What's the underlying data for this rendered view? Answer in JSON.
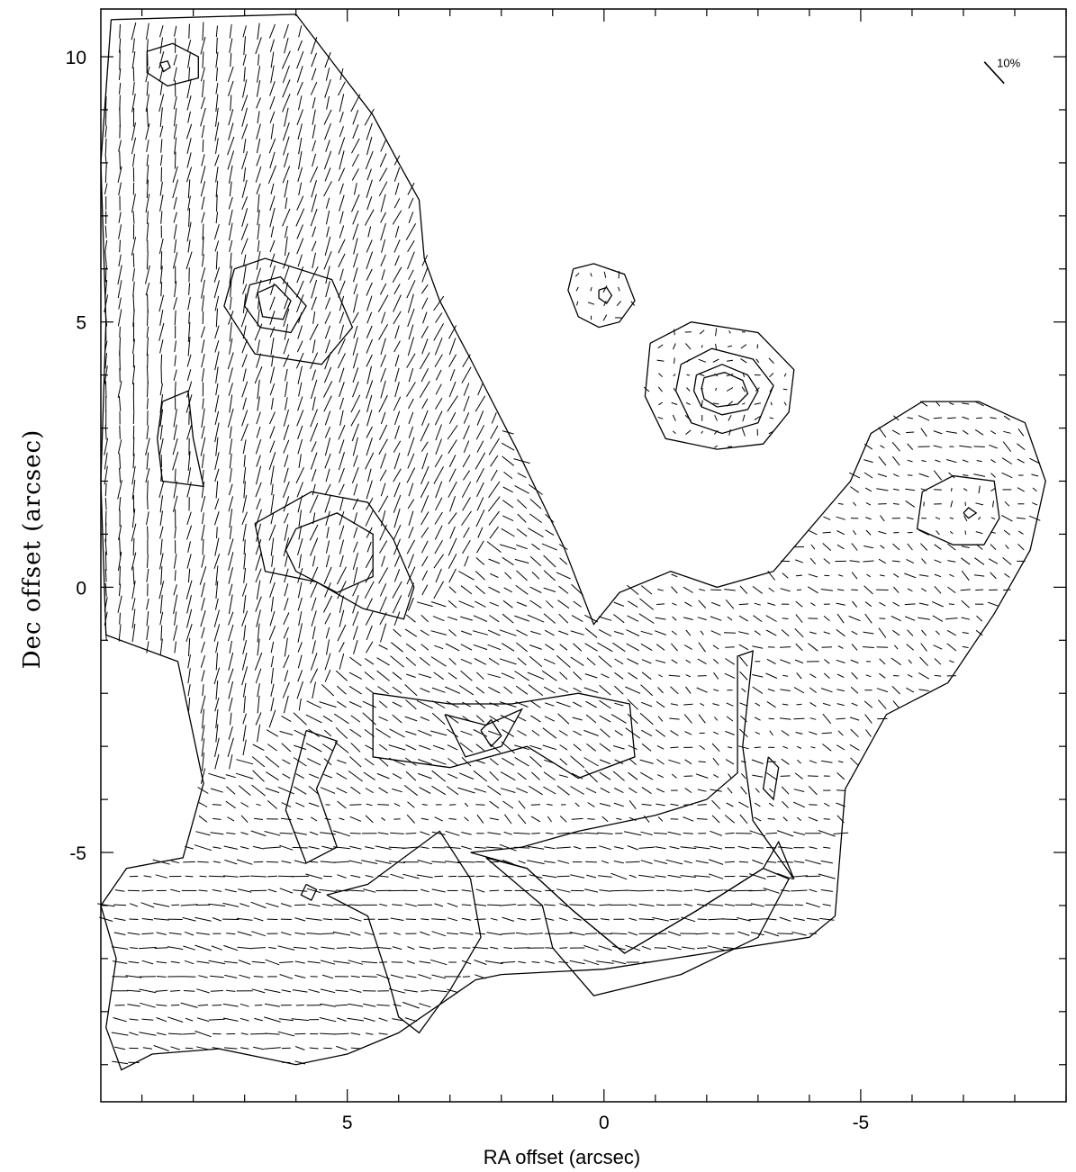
{
  "chart_data": {
    "type": "scatter",
    "description_kind": "polarization-vector-map-with-contours",
    "xlabel": "RA offset (arcsec)",
    "ylabel": "Dec offset (arcsec)",
    "xlim": [
      9.8,
      -9.0
    ],
    "ylim": [
      -9.7,
      10.9
    ],
    "x_ticks": [
      5,
      0,
      -5
    ],
    "x_tick_labels": [
      "5",
      "0",
      "-5"
    ],
    "y_ticks": [
      10,
      5,
      0,
      -5
    ],
    "y_tick_labels": [
      "10",
      "5",
      "0",
      "-5"
    ],
    "vector_scale": {
      "label": "10%",
      "length_percent": 10,
      "x": -7.6,
      "y": 9.7
    },
    "vector_grid_step": 0.27,
    "contours": [
      {
        "name": "emission-outline",
        "points": [
          [
            9.6,
            10.7
          ],
          [
            6.0,
            10.8
          ],
          [
            4.5,
            8.9
          ],
          [
            4.0,
            8.0
          ],
          [
            3.6,
            7.3
          ],
          [
            3.5,
            6.2
          ],
          [
            3.2,
            5.4
          ],
          [
            2.6,
            4.3
          ],
          [
            1.7,
            2.6
          ],
          [
            0.8,
            0.8
          ],
          [
            0.2,
            -0.7
          ],
          [
            -0.3,
            -0.1
          ],
          [
            -1.3,
            0.3
          ],
          [
            -2.2,
            0.0
          ],
          [
            -3.3,
            0.3
          ],
          [
            -4.8,
            2.0
          ],
          [
            -5.2,
            2.9
          ],
          [
            -6.2,
            3.5
          ],
          [
            -7.3,
            3.5
          ],
          [
            -8.2,
            3.1
          ],
          [
            -8.6,
            2.0
          ],
          [
            -8.3,
            0.7
          ],
          [
            -7.6,
            -0.5
          ],
          [
            -6.7,
            -1.8
          ],
          [
            -5.5,
            -2.4
          ],
          [
            -4.7,
            -3.8
          ],
          [
            -4.6,
            -5.0
          ],
          [
            -4.5,
            -6.2
          ],
          [
            -4.0,
            -6.6
          ],
          [
            -2.0,
            -6.9
          ],
          [
            0.0,
            -7.2
          ],
          [
            2.0,
            -7.3
          ],
          [
            2.5,
            -7.4
          ],
          [
            4.0,
            -8.4
          ],
          [
            5.0,
            -8.8
          ],
          [
            6.0,
            -9.0
          ],
          [
            7.5,
            -8.7
          ],
          [
            8.8,
            -8.8
          ],
          [
            9.4,
            -9.1
          ],
          [
            9.7,
            -8.3
          ],
          [
            9.5,
            -7.0
          ],
          [
            9.8,
            -6.0
          ],
          [
            9.3,
            -5.3
          ],
          [
            8.2,
            -5.1
          ],
          [
            7.8,
            -3.7
          ],
          [
            8.3,
            -1.4
          ],
          [
            9.7,
            -0.9
          ],
          [
            9.8,
            2.0
          ],
          [
            9.7,
            5.0
          ],
          [
            9.8,
            8.0
          ],
          [
            9.6,
            10.7
          ]
        ]
      },
      {
        "name": "north-peak-outer",
        "points": [
          [
            8.9,
            10.1
          ],
          [
            8.4,
            10.25
          ],
          [
            7.9,
            10.0
          ],
          [
            7.9,
            9.6
          ],
          [
            8.5,
            9.45
          ],
          [
            8.9,
            9.7
          ],
          [
            8.9,
            10.1
          ]
        ]
      },
      {
        "name": "north-peak-inner",
        "points": [
          [
            8.65,
            9.88
          ],
          [
            8.5,
            9.92
          ],
          [
            8.45,
            9.8
          ],
          [
            8.58,
            9.72
          ],
          [
            8.65,
            9.88
          ]
        ]
      },
      {
        "name": "northeast-knot-outer",
        "points": [
          [
            7.2,
            6.0
          ],
          [
            6.6,
            6.2
          ],
          [
            5.3,
            5.8
          ],
          [
            4.9,
            4.9
          ],
          [
            5.5,
            4.2
          ],
          [
            6.8,
            4.4
          ],
          [
            7.4,
            5.3
          ],
          [
            7.2,
            6.0
          ]
        ]
      },
      {
        "name": "northeast-knot-mid",
        "points": [
          [
            6.9,
            5.7
          ],
          [
            6.3,
            5.85
          ],
          [
            5.8,
            5.3
          ],
          [
            6.1,
            4.8
          ],
          [
            6.7,
            4.9
          ],
          [
            7.0,
            5.3
          ],
          [
            6.9,
            5.7
          ]
        ]
      },
      {
        "name": "northeast-knot-inner",
        "points": [
          [
            6.75,
            5.55
          ],
          [
            6.4,
            5.7
          ],
          [
            6.1,
            5.4
          ],
          [
            6.25,
            5.05
          ],
          [
            6.65,
            5.1
          ],
          [
            6.75,
            5.55
          ]
        ]
      },
      {
        "name": "east-filament",
        "points": [
          [
            8.6,
            3.5
          ],
          [
            8.1,
            3.7
          ],
          [
            8.0,
            2.8
          ],
          [
            7.8,
            1.9
          ],
          [
            8.6,
            2.0
          ],
          [
            8.7,
            2.8
          ],
          [
            8.6,
            3.5
          ]
        ]
      },
      {
        "name": "mid-clump-outer",
        "points": [
          [
            6.8,
            1.2
          ],
          [
            5.7,
            1.8
          ],
          [
            4.6,
            1.6
          ],
          [
            4.1,
            0.9
          ],
          [
            3.7,
            0.0
          ],
          [
            3.9,
            -0.6
          ],
          [
            4.7,
            -0.4
          ],
          [
            5.6,
            0.1
          ],
          [
            6.6,
            0.3
          ],
          [
            6.8,
            1.2
          ]
        ]
      },
      {
        "name": "mid-clump-inner",
        "points": [
          [
            6.0,
            1.1
          ],
          [
            5.2,
            1.4
          ],
          [
            4.5,
            1.0
          ],
          [
            4.5,
            0.2
          ],
          [
            5.2,
            -0.1
          ],
          [
            6.0,
            0.3
          ],
          [
            6.2,
            0.7
          ],
          [
            6.0,
            1.1
          ]
        ]
      },
      {
        "name": "central-arc",
        "points": [
          [
            4.5,
            -2.0
          ],
          [
            3.0,
            -2.2
          ],
          [
            1.8,
            -2.2
          ],
          [
            0.5,
            -2.0
          ],
          [
            -0.5,
            -2.2
          ],
          [
            -0.6,
            -3.2
          ],
          [
            0.5,
            -3.6
          ],
          [
            1.5,
            -3.0
          ],
          [
            3.0,
            -3.4
          ],
          [
            4.5,
            -3.2
          ],
          [
            4.5,
            -2.0
          ]
        ]
      },
      {
        "name": "central-knot-outer",
        "points": [
          [
            3.1,
            -2.4
          ],
          [
            2.3,
            -2.6
          ],
          [
            1.6,
            -2.3
          ],
          [
            2.0,
            -3.0
          ],
          [
            2.7,
            -3.2
          ],
          [
            3.1,
            -2.4
          ]
        ]
      },
      {
        "name": "central-knot-inner",
        "points": [
          [
            2.4,
            -2.7
          ],
          [
            2.2,
            -2.5
          ],
          [
            2.0,
            -2.8
          ],
          [
            2.2,
            -3.0
          ],
          [
            2.4,
            -2.7
          ]
        ]
      },
      {
        "name": "southwest-patch",
        "points": [
          [
            5.8,
            -2.7
          ],
          [
            5.2,
            -2.9
          ],
          [
            5.6,
            -3.8
          ],
          [
            5.2,
            -4.9
          ],
          [
            5.8,
            -5.2
          ],
          [
            6.2,
            -4.2
          ],
          [
            5.8,
            -2.7
          ]
        ]
      },
      {
        "name": "south-east-patch",
        "points": [
          [
            5.8,
            -5.6
          ],
          [
            5.6,
            -5.7
          ],
          [
            5.7,
            -5.9
          ],
          [
            5.9,
            -5.8
          ],
          [
            5.8,
            -5.6
          ]
        ]
      },
      {
        "name": "south-loop",
        "points": [
          [
            2.6,
            -5.0
          ],
          [
            1.5,
            -5.3
          ],
          [
            0.6,
            -6.1
          ],
          [
            -0.4,
            -6.9
          ],
          [
            -1.8,
            -6.1
          ],
          [
            -3.1,
            -5.3
          ],
          [
            -3.4,
            -4.8
          ],
          [
            -3.7,
            -5.5
          ],
          [
            -2.9,
            -4.4
          ],
          [
            -2.7,
            -3.0
          ],
          [
            -2.9,
            -1.2
          ],
          [
            -2.6,
            -1.3
          ],
          [
            -2.6,
            -3.5
          ],
          [
            -2.0,
            -4.0
          ],
          [
            -1.0,
            -4.3
          ],
          [
            0.5,
            -4.6
          ],
          [
            1.6,
            -4.9
          ],
          [
            2.6,
            -5.0
          ]
        ]
      },
      {
        "name": "south-arm",
        "points": [
          [
            2.3,
            -5.1
          ],
          [
            1.2,
            -6.0
          ],
          [
            1.0,
            -6.8
          ],
          [
            0.2,
            -7.7
          ],
          [
            -1.5,
            -7.3
          ],
          [
            -3.0,
            -6.6
          ],
          [
            -3.6,
            -5.5
          ],
          [
            -3.1,
            -5.3
          ],
          [
            -1.8,
            -6.1
          ],
          [
            -0.4,
            -6.9
          ],
          [
            0.6,
            -6.1
          ],
          [
            1.5,
            -5.3
          ],
          [
            2.3,
            -5.1
          ]
        ]
      },
      {
        "name": "southwest-lobe",
        "points": [
          [
            5.4,
            -5.8
          ],
          [
            4.6,
            -6.2
          ],
          [
            4.2,
            -7.4
          ],
          [
            4.0,
            -8.1
          ],
          [
            3.6,
            -8.4
          ],
          [
            3.0,
            -7.6
          ],
          [
            2.4,
            -6.6
          ],
          [
            2.6,
            -5.5
          ],
          [
            3.2,
            -4.6
          ],
          [
            4.6,
            -5.6
          ],
          [
            5.4,
            -5.8
          ]
        ]
      },
      {
        "name": "west-knot",
        "points": [
          [
            -3.2,
            -3.2
          ],
          [
            -3.1,
            -3.8
          ],
          [
            -3.3,
            -4.0
          ],
          [
            -3.4,
            -3.4
          ],
          [
            -3.2,
            -3.2
          ]
        ]
      },
      {
        "name": "source-a-outer",
        "points": [
          [
            0.6,
            6.0
          ],
          [
            0.2,
            6.1
          ],
          [
            -0.4,
            5.9
          ],
          [
            -0.6,
            5.4
          ],
          [
            -0.3,
            5.0
          ],
          [
            0.1,
            4.9
          ],
          [
            0.5,
            5.1
          ],
          [
            0.7,
            5.6
          ],
          [
            0.6,
            6.0
          ]
        ]
      },
      {
        "name": "source-a-inner",
        "points": [
          [
            0.1,
            5.6
          ],
          [
            -0.05,
            5.65
          ],
          [
            -0.15,
            5.5
          ],
          [
            -0.05,
            5.35
          ],
          [
            0.1,
            5.45
          ],
          [
            0.1,
            5.6
          ]
        ]
      },
      {
        "name": "source-b-outer",
        "points": [
          [
            -0.9,
            4.6
          ],
          [
            -1.7,
            5.0
          ],
          [
            -3.0,
            4.8
          ],
          [
            -3.7,
            4.1
          ],
          [
            -3.6,
            3.3
          ],
          [
            -3.1,
            2.7
          ],
          [
            -2.2,
            2.6
          ],
          [
            -1.2,
            2.8
          ],
          [
            -0.8,
            3.6
          ],
          [
            -0.9,
            4.6
          ]
        ]
      },
      {
        "name": "source-b-mid",
        "points": [
          [
            -1.5,
            4.2
          ],
          [
            -2.1,
            4.5
          ],
          [
            -2.9,
            4.3
          ],
          [
            -3.3,
            3.8
          ],
          [
            -3.0,
            3.1
          ],
          [
            -2.3,
            2.9
          ],
          [
            -1.7,
            3.1
          ],
          [
            -1.4,
            3.7
          ],
          [
            -1.5,
            4.2
          ]
        ]
      },
      {
        "name": "source-b-inner",
        "points": [
          [
            -1.8,
            4.0
          ],
          [
            -2.3,
            4.2
          ],
          [
            -2.8,
            4.0
          ],
          [
            -3.0,
            3.7
          ],
          [
            -2.8,
            3.35
          ],
          [
            -2.3,
            3.25
          ],
          [
            -1.9,
            3.4
          ],
          [
            -1.75,
            3.7
          ],
          [
            -1.8,
            4.0
          ]
        ]
      },
      {
        "name": "source-b-core",
        "points": [
          [
            -1.95,
            3.95
          ],
          [
            -2.35,
            4.05
          ],
          [
            -2.7,
            3.9
          ],
          [
            -2.8,
            3.65
          ],
          [
            -2.6,
            3.45
          ],
          [
            -2.2,
            3.4
          ],
          [
            -1.95,
            3.55
          ],
          [
            -1.9,
            3.75
          ],
          [
            -1.95,
            3.95
          ]
        ]
      },
      {
        "name": "west-source-outer",
        "points": [
          [
            -6.2,
            1.8
          ],
          [
            -6.8,
            2.1
          ],
          [
            -7.6,
            2.0
          ],
          [
            -7.7,
            1.3
          ],
          [
            -7.4,
            0.8
          ],
          [
            -6.8,
            0.8
          ],
          [
            -6.1,
            1.1
          ],
          [
            -6.2,
            1.8
          ]
        ]
      },
      {
        "name": "west-source-inner",
        "points": [
          [
            -7.0,
            1.4
          ],
          [
            -7.1,
            1.5
          ],
          [
            -7.25,
            1.4
          ],
          [
            -7.1,
            1.3
          ],
          [
            -7.0,
            1.4
          ]
        ]
      }
    ]
  }
}
